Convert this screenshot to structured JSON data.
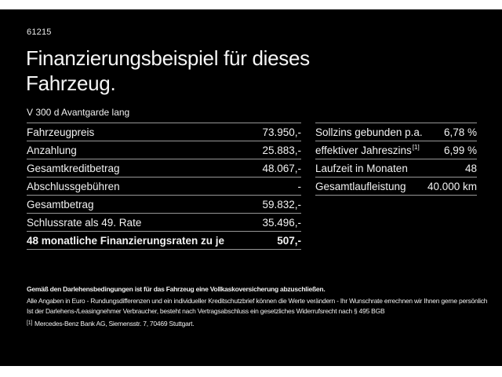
{
  "page": {
    "code": "61215",
    "title_line1": "Finanzierungsbeispiel für dieses",
    "title_line2": "Fahrzeug.",
    "vehicle_model": "V 300 d Avantgarde lang"
  },
  "finance_table": {
    "rows": [
      {
        "label": "Fahrzeugpreis",
        "value": "73.950,-"
      },
      {
        "label": "Anzahlung",
        "value": "25.883,-"
      },
      {
        "label": "Gesamtkreditbetrag",
        "value": "48.067,-"
      },
      {
        "label": "Abschlussgebühren",
        "value": "-"
      },
      {
        "label": "Gesamtbetrag",
        "value": "59.832,-"
      },
      {
        "label": "Schlussrate als 49. Rate",
        "value": "35.496,-"
      },
      {
        "label": "48 monatliche Finanzierungsraten zu je",
        "value": "507,-"
      }
    ]
  },
  "conditions_table": {
    "rows": [
      {
        "label": "Sollzins gebunden p.a.",
        "sup": "",
        "value": "6,78 %"
      },
      {
        "label": "effektiver Jahreszins",
        "sup": "[1]",
        "value": "6,99 %"
      },
      {
        "label": "Laufzeit in Monaten",
        "sup": "",
        "value": "48"
      },
      {
        "label": "Gesamtlaufleistung",
        "sup": "",
        "value": "40.000 km"
      }
    ]
  },
  "footnotes": {
    "line1": "Gemäß den Darlehensbedingungen ist für das Fahrzeug eine Vollkaskoversicherung abzuschließen.",
    "line2": "Alle Angaben in Euro - Rundungsdifferenzen und ein individueller Kreditschutzbrief können die Werte verändern - Ihr Wunschrate errechnen wir Ihnen gerne persönlich",
    "line3": "Ist der Darlehens-/Leasingnehmer Verbraucher, besteht nach Vertragsabschluss ein gesetzliches Widerrufsrecht nach § 495 BGB",
    "ref_marker": "[1]",
    "ref_text": "Mercedes-Benz Bank AG, Siemensstr. 7, 70469 Stuttgart."
  },
  "colors": {
    "background": "#000000",
    "letterbox_bar": "#ffffff",
    "text": "#f2f2f2",
    "divider": "#979797"
  }
}
